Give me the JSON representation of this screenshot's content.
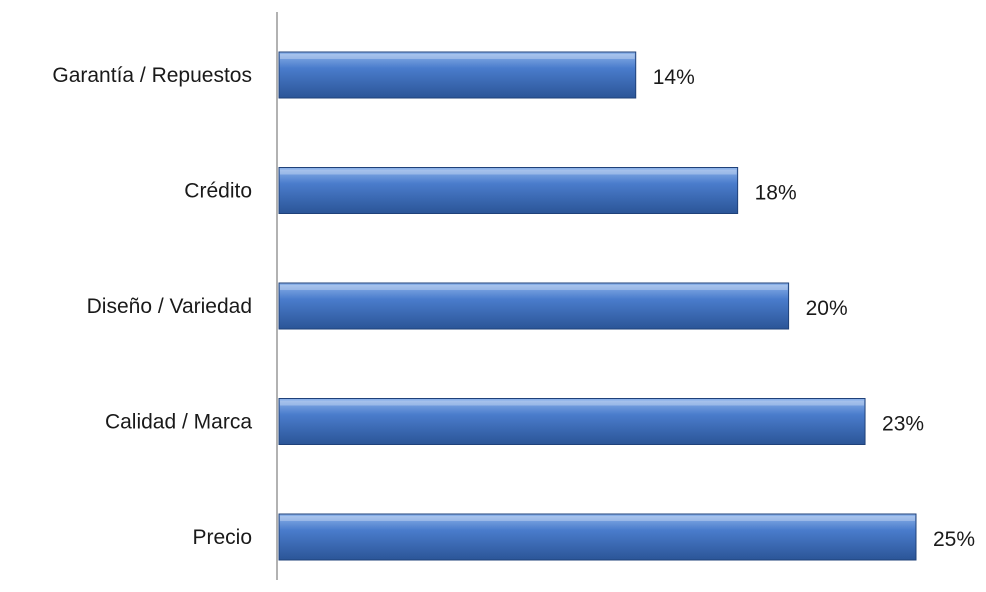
{
  "chart_data": {
    "type": "bar",
    "orientation": "horizontal",
    "categories": [
      "Garantía / Repuestos",
      "Crédito",
      "Diseño / Variedad",
      "Calidad / Marca",
      "Precio"
    ],
    "values": [
      14,
      18,
      20,
      23,
      25
    ],
    "value_labels": [
      "14%",
      "18%",
      "20%",
      "23%",
      "25%"
    ],
    "unit": "%",
    "title": "",
    "xlabel": "",
    "ylabel": "",
    "xlim": [
      0,
      25
    ],
    "grid": false,
    "legend": "none",
    "colors": {
      "bar_top": "#8fb4ea",
      "bar_mid": "#4a7ccc",
      "bar_bottom": "#2b5597",
      "bar_stroke": "#1f4179",
      "axis": "#999999",
      "text": "#1a1a1a"
    }
  }
}
